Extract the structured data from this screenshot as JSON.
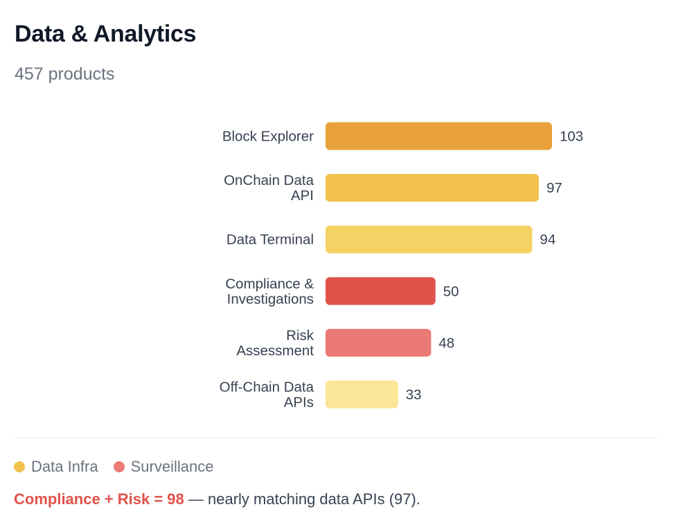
{
  "header": {
    "title": "Data & Analytics",
    "subtitle": "457 products"
  },
  "chart_data": {
    "type": "bar",
    "orientation": "horizontal",
    "title": "Data & Analytics",
    "categories": [
      "Block Explorer",
      "OnChain Data API",
      "Data Terminal",
      "Compliance & Investigations",
      "Risk Assessment",
      "Off-Chain Data APIs"
    ],
    "category_lines": [
      [
        "Block Explorer"
      ],
      [
        "OnChain Data",
        "API"
      ],
      [
        "Data Terminal"
      ],
      [
        "Compliance &",
        "Investigations"
      ],
      [
        "Risk",
        "Assessment"
      ],
      [
        "Off-Chain Data",
        "APIs"
      ]
    ],
    "values": [
      103,
      97,
      94,
      50,
      48,
      33
    ],
    "value_labels": [
      "103",
      "97",
      "94",
      "50",
      "48",
      "33"
    ],
    "colors": [
      "#e9a23b",
      "#f2c14e",
      "#f5d264",
      "#e0524a",
      "#eb7a74",
      "#fbe596"
    ],
    "groups": [
      "Data Infra",
      "Data Infra",
      "Data Infra",
      "Surveillance",
      "Surveillance",
      "Data Infra"
    ],
    "xlim": [
      0,
      103
    ],
    "grid": false,
    "xlabel": "",
    "ylabel": ""
  },
  "legend": [
    {
      "label": "Data Infra",
      "color": "#f2c14e"
    },
    {
      "label": "Surveillance",
      "color": "#eb7a74"
    }
  ],
  "note": {
    "highlight": "Compliance + Risk = 98",
    "text": " — nearly matching data APIs (97)."
  }
}
